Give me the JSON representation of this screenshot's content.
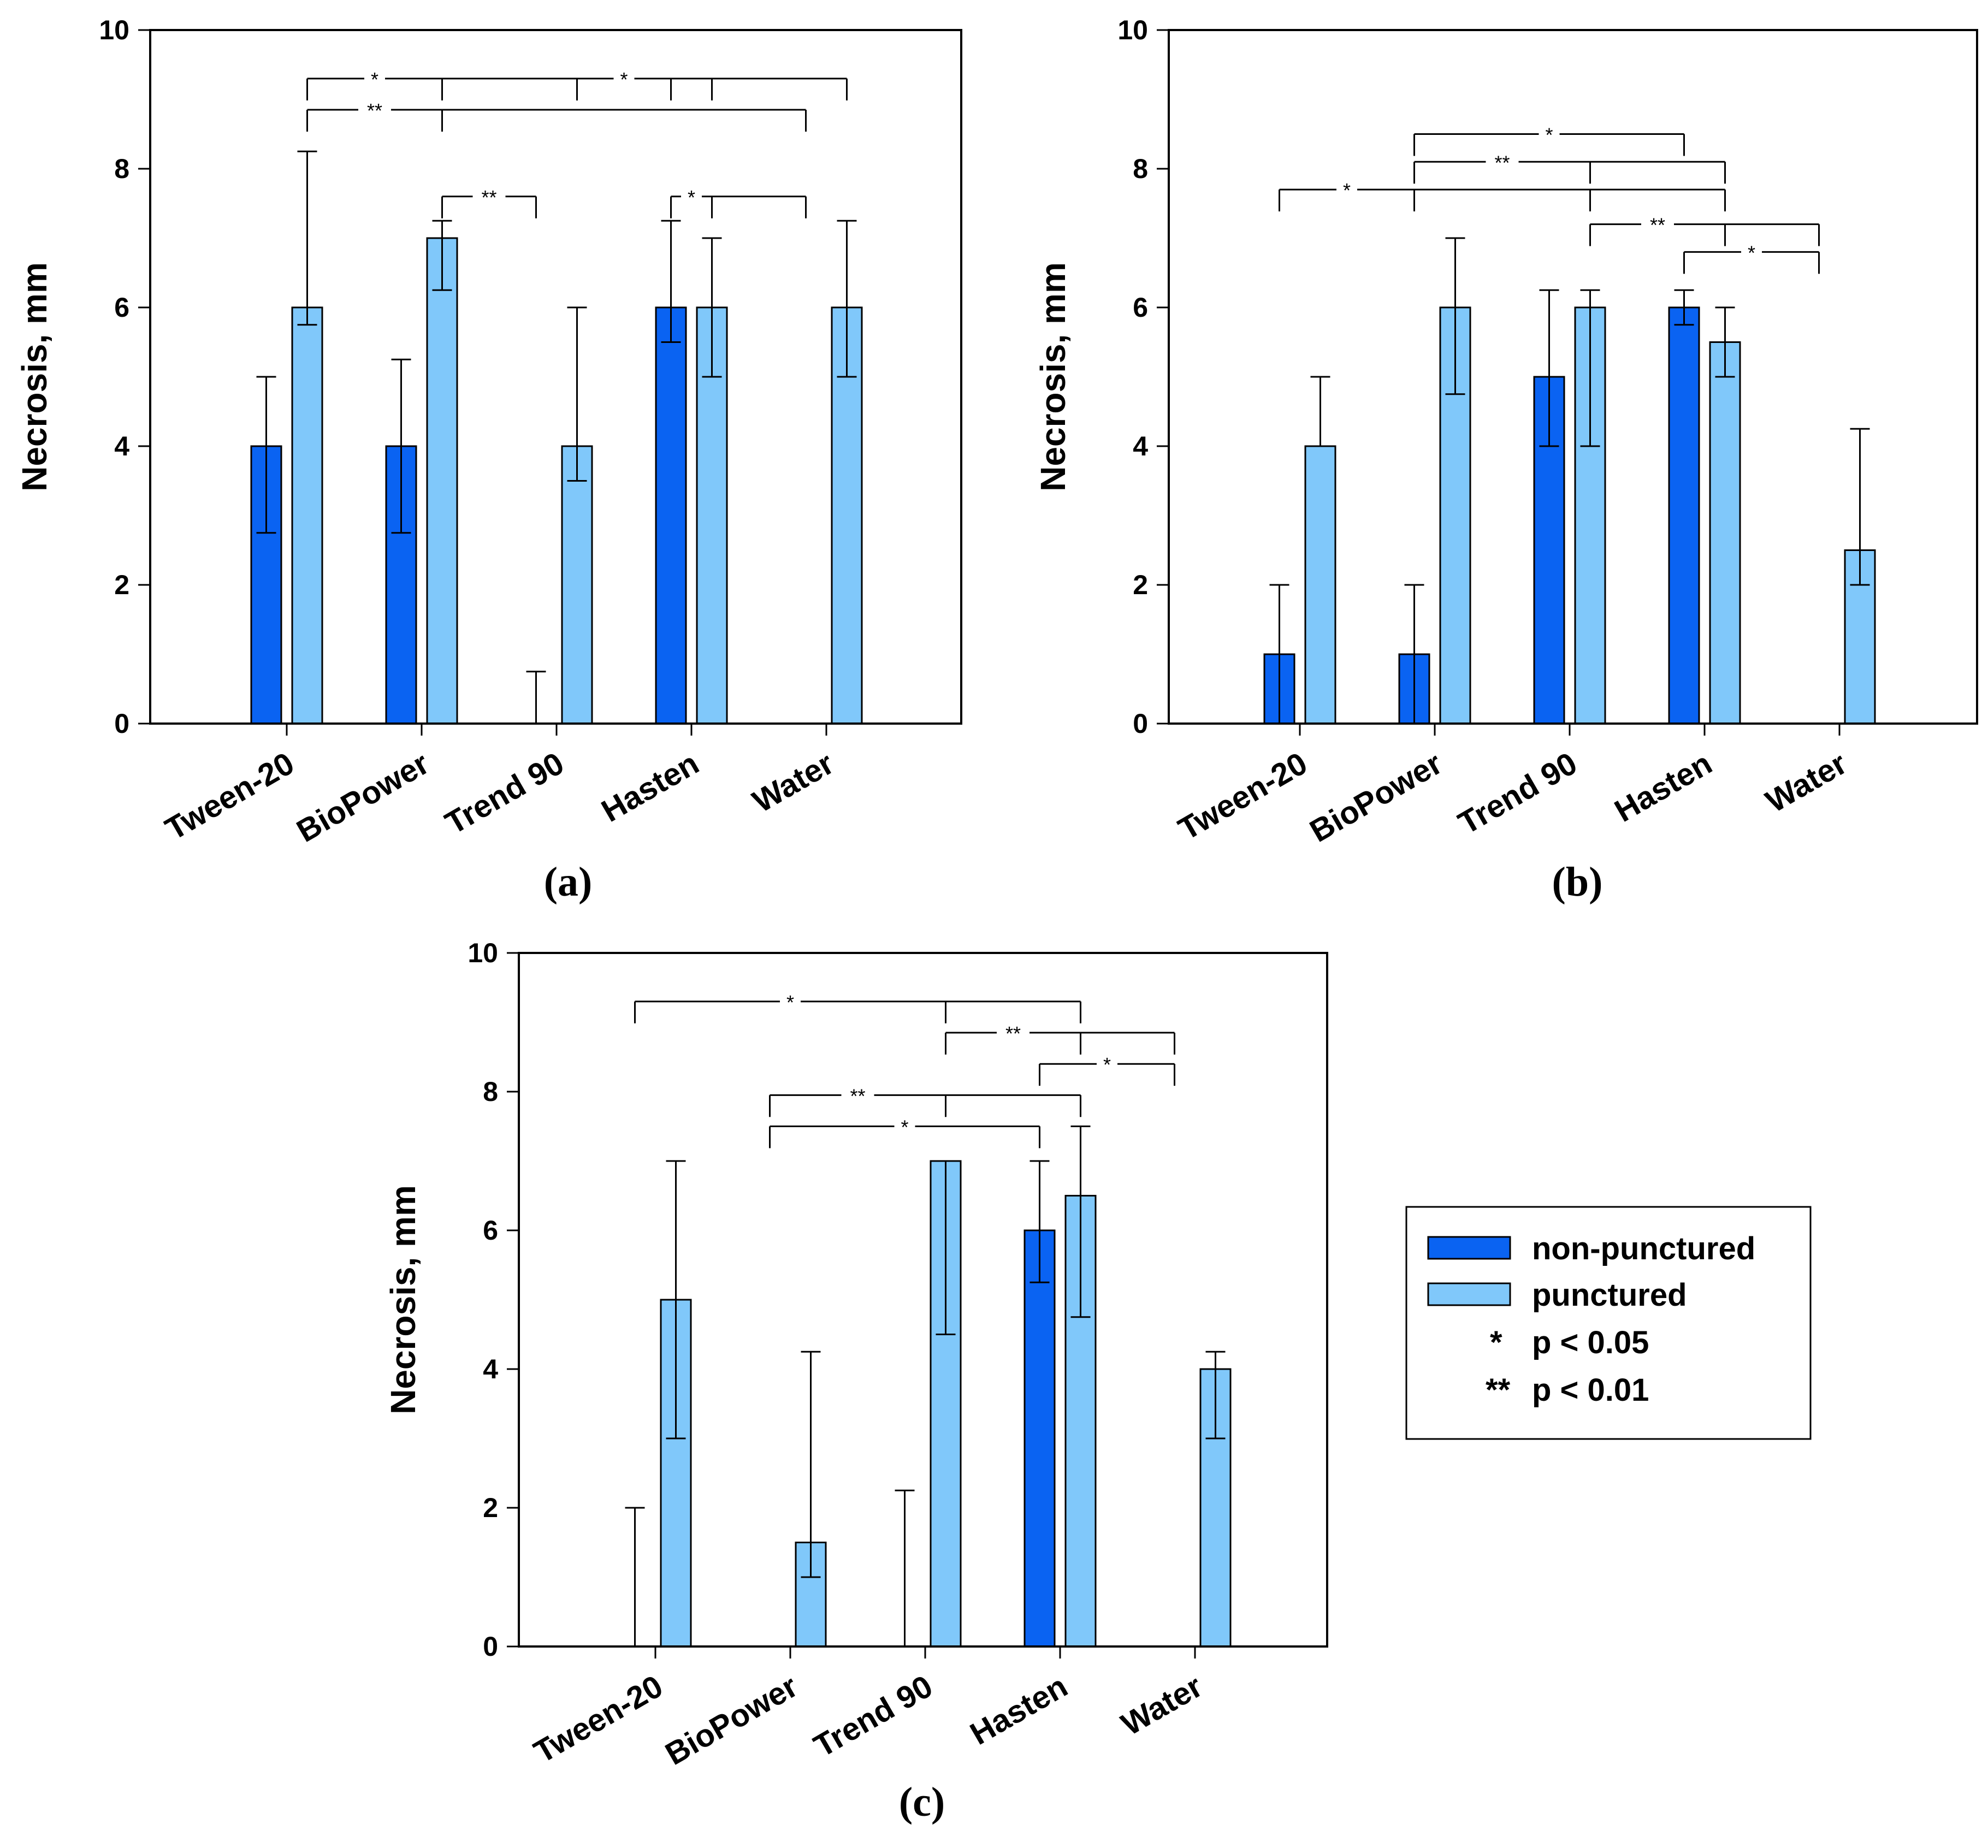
{
  "colors": {
    "non_punctured": "#0a63f2",
    "punctured": "#80c8fa",
    "stroke": "#000000"
  },
  "legend": {
    "items": [
      {
        "label": "non-punctured",
        "color": "#0a63f2"
      },
      {
        "label": "punctured",
        "color": "#80c8fa"
      }
    ],
    "significance": [
      {
        "symbol": "*",
        "label": "p < 0.05"
      },
      {
        "symbol": "**",
        "label": "p < 0.01"
      }
    ]
  },
  "chart_data": [
    {
      "type": "bar",
      "panel_label": "(a)",
      "ylabel": "Necrosis, mm",
      "ylim": [
        0,
        10
      ],
      "yticks": [
        0,
        2,
        4,
        6,
        8,
        10
      ],
      "categories": [
        "Tween-20",
        "BioPower",
        "Trend 90",
        "Hasten",
        "Water"
      ],
      "series": [
        {
          "name": "non-punctured",
          "values": [
            4,
            4,
            0,
            6,
            0
          ],
          "err_low": [
            2.75,
            2.75,
            0,
            5.5,
            0
          ],
          "err_high": [
            5,
            5.25,
            0.75,
            7.25,
            0
          ]
        },
        {
          "name": "punctured",
          "values": [
            6,
            7,
            4,
            6,
            6
          ],
          "err_low": [
            5.75,
            6.25,
            3.5,
            5,
            5
          ],
          "err_high": [
            8.25,
            7.25,
            6,
            7,
            7.25
          ]
        }
      ],
      "significance": [
        {
          "label": "*",
          "y": 9.3,
          "start": [
            0,
            1
          ],
          "ends": [
            [
              1,
              1
            ],
            [
              2,
              1
            ]
          ]
        },
        {
          "label": "*",
          "y": 9.3,
          "start": [
            2,
            1
          ],
          "ends": [
            [
              3,
              0
            ],
            [
              3,
              1
            ],
            [
              4,
              1
            ]
          ]
        },
        {
          "label": "**",
          "y": 8.85,
          "start": [
            0,
            1
          ],
          "ends": [
            [
              1,
              1
            ],
            [
              4,
              0
            ]
          ]
        },
        {
          "label": "**",
          "y": 7.6,
          "start": [
            1,
            1
          ],
          "ends": [
            [
              2,
              0
            ]
          ]
        },
        {
          "label": "*",
          "y": 7.6,
          "start": [
            3,
            0
          ],
          "ends": [
            [
              3,
              1
            ],
            [
              4,
              0
            ]
          ]
        }
      ]
    },
    {
      "type": "bar",
      "panel_label": "(b)",
      "ylabel": "Necrosis, mm",
      "ylim": [
        0,
        10
      ],
      "yticks": [
        0,
        2,
        4,
        6,
        8,
        10
      ],
      "categories": [
        "Tween-20",
        "BioPower",
        "Trend 90",
        "Hasten",
        "Water"
      ],
      "series": [
        {
          "name": "non-punctured",
          "values": [
            1,
            1,
            5,
            6,
            0
          ],
          "err_low": [
            0,
            0,
            4,
            5.75,
            0
          ],
          "err_high": [
            2,
            2,
            6.25,
            6.25,
            0
          ]
        },
        {
          "name": "punctured",
          "values": [
            4,
            6,
            6,
            5.5,
            2.5
          ],
          "err_low": [
            4,
            4.75,
            4,
            5,
            2
          ],
          "err_high": [
            5,
            7,
            6.25,
            6,
            4.25
          ]
        }
      ],
      "significance": [
        {
          "label": "*",
          "y": 8.5,
          "start": [
            1,
            0
          ],
          "ends": [
            [
              3,
              0
            ]
          ]
        },
        {
          "label": "**",
          "y": 8.1,
          "start": [
            1,
            0
          ],
          "ends": [
            [
              2,
              1
            ],
            [
              3,
              1
            ]
          ]
        },
        {
          "label": "*",
          "y": 7.7,
          "start": [
            0,
            0
          ],
          "ends": [
            [
              1,
              0
            ],
            [
              2,
              1
            ],
            [
              3,
              1
            ]
          ]
        },
        {
          "label": "**",
          "y": 7.2,
          "start": [
            2,
            1
          ],
          "ends": [
            [
              3,
              1
            ],
            [
              4,
              0
            ]
          ]
        },
        {
          "label": "*",
          "y": 6.8,
          "start": [
            3,
            0
          ],
          "ends": [
            [
              4,
              0
            ]
          ]
        }
      ]
    },
    {
      "type": "bar",
      "panel_label": "(c)",
      "ylabel": "Necrosis, mm",
      "ylim": [
        0,
        10
      ],
      "yticks": [
        0,
        2,
        4,
        6,
        8,
        10
      ],
      "categories": [
        "Tween-20",
        "BioPower",
        "Trend 90",
        "Hasten",
        "Water"
      ],
      "series": [
        {
          "name": "non-punctured",
          "values": [
            0,
            0,
            0,
            6,
            0
          ],
          "err_low": [
            0,
            0,
            0,
            5.25,
            0
          ],
          "err_high": [
            2,
            0,
            2.25,
            7,
            0
          ]
        },
        {
          "name": "punctured",
          "values": [
            5,
            1.5,
            7,
            6.5,
            4
          ],
          "err_low": [
            3,
            1,
            4.5,
            4.75,
            3
          ],
          "err_high": [
            7,
            4.25,
            7,
            7.5,
            4.25
          ]
        }
      ],
      "significance": [
        {
          "label": "*",
          "y": 9.3,
          "start": [
            0,
            0
          ],
          "ends": [
            [
              2,
              1
            ],
            [
              3,
              1
            ]
          ]
        },
        {
          "label": "**",
          "y": 8.85,
          "start": [
            2,
            1
          ],
          "ends": [
            [
              3,
              1
            ],
            [
              4,
              0
            ]
          ]
        },
        {
          "label": "*",
          "y": 8.4,
          "start": [
            3,
            0
          ],
          "ends": [
            [
              4,
              0
            ]
          ]
        },
        {
          "label": "**",
          "y": 7.95,
          "start": [
            1,
            0
          ],
          "ends": [
            [
              2,
              1
            ],
            [
              3,
              1
            ]
          ]
        },
        {
          "label": "*",
          "y": 7.5,
          "start": [
            1,
            0
          ],
          "ends": [
            [
              3,
              0
            ]
          ]
        }
      ]
    }
  ]
}
